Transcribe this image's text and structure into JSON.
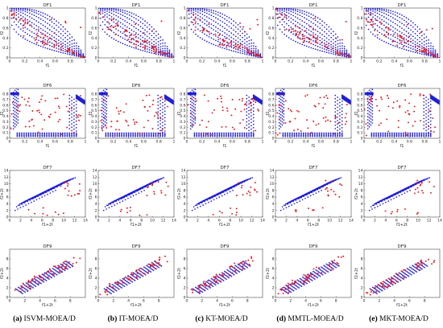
{
  "colors": {
    "pof": "#1f1fd6",
    "obtained": "#e8161b",
    "axis": "#222222"
  },
  "captions": [
    {
      "tag": "(a)",
      "label": "ISVM-MOEA/D"
    },
    {
      "tag": "(b)",
      "label": "IT-MOEA/D"
    },
    {
      "tag": "(c)",
      "label": "KT-MOEA/D"
    },
    {
      "tag": "(d)",
      "label": "MMTL-MOEA/D"
    },
    {
      "tag": "(e)",
      "label": "MKT-MOEA/D"
    }
  ],
  "chart_data": [
    {
      "type": "scatter",
      "title": "DF1",
      "xlabel": "f1",
      "ylabel": "f2",
      "xlim": [
        0,
        1
      ],
      "ylim": [
        0,
        1
      ],
      "xticks": [
        "0",
        "0.2",
        "0.4",
        "0.6",
        "0.8",
        "1"
      ],
      "yticks": [
        "0",
        "0.2",
        "0.4",
        "0.6",
        "0.8",
        "1"
      ],
      "series": [
        {
          "pattern": "df1-pof"
        },
        {
          "pattern": "df1-obtained"
        }
      ]
    },
    {
      "type": "scatter",
      "title": "DF6",
      "xlabel": "f1",
      "ylabel": "f2",
      "xlim": [
        0,
        1
      ],
      "ylim": [
        0,
        0.9
      ],
      "xticks": [
        "0",
        "0.2",
        "0.4",
        "0.6",
        "0.8",
        "1"
      ],
      "yticks": [
        "0",
        "0.1",
        "0.2",
        "0.3",
        "0.4",
        "0.5",
        "0.6",
        "0.7",
        "0.8"
      ],
      "series": [
        {
          "pattern": "df6-pof"
        },
        {
          "pattern": "df6-obtained"
        }
      ]
    },
    {
      "type": "scatter",
      "title": "DF7",
      "xlabel": "f1+2t",
      "ylabel": "f2+2t",
      "xlim": [
        0,
        14
      ],
      "ylim": [
        0,
        14
      ],
      "xticks": [
        "0",
        "2",
        "4",
        "6",
        "8",
        "10",
        "12",
        "14"
      ],
      "yticks": [
        "0",
        "2",
        "4",
        "6",
        "8",
        "10",
        "12",
        "14"
      ],
      "series": [
        {
          "pattern": "df7-pof"
        },
        {
          "pattern": "df7-obtained"
        }
      ]
    },
    {
      "type": "scatter",
      "title": "DF9",
      "xlabel": "f1+2t",
      "ylabel": "f2+2t",
      "xlim": [
        0,
        10
      ],
      "ylim": [
        0,
        10
      ],
      "xticks": [
        "0",
        "2",
        "4",
        "6",
        "8"
      ],
      "yticks": [
        "0",
        "2",
        "4",
        "6",
        "8"
      ],
      "series": [
        {
          "pattern": "df9-pof"
        },
        {
          "pattern": "df9-obtained"
        }
      ]
    }
  ]
}
